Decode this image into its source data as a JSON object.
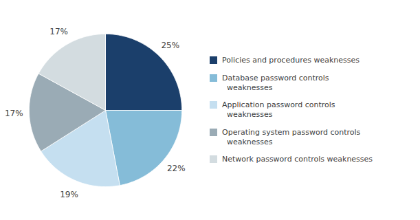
{
  "chart_data": {
    "type": "pie",
    "categories": [
      "Policies and procedures weaknesses",
      "Database password controls\n  weaknesses",
      "Application password controls\n  weaknesses",
      "Operating system password controls\n  weaknesses",
      "Network password controls weaknesses"
    ],
    "values": [
      25,
      22,
      19,
      17,
      17
    ],
    "value_labels": [
      "25%",
      "22%",
      "19%",
      "17%",
      "17%"
    ],
    "data_labels": true,
    "colors": [
      "#1b3f6b",
      "#85bcd8",
      "#c5dff0",
      "#9aabb5",
      "#d3dce0"
    ],
    "legend": "right"
  }
}
